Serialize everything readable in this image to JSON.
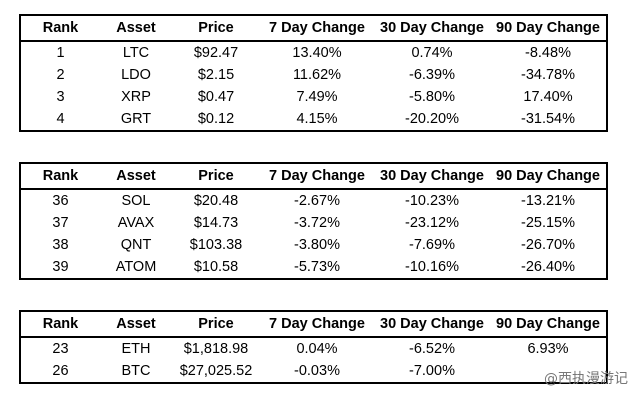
{
  "columns": [
    "Rank",
    "Asset",
    "Price",
    "7 Day Change",
    "30 Day Change",
    "90 Day Change"
  ],
  "tables": [
    {
      "rows": [
        [
          "1",
          "LTC",
          "$92.47",
          "13.40%",
          "0.74%",
          "-8.48%"
        ],
        [
          "2",
          "LDO",
          "$2.15",
          "11.62%",
          "-6.39%",
          "-34.78%"
        ],
        [
          "3",
          "XRP",
          "$0.47",
          "7.49%",
          "-5.80%",
          "17.40%"
        ],
        [
          "4",
          "GRT",
          "$0.12",
          "4.15%",
          "-20.20%",
          "-31.54%"
        ]
      ]
    },
    {
      "rows": [
        [
          "36",
          "SOL",
          "$20.48",
          "-2.67%",
          "-10.23%",
          "-13.21%"
        ],
        [
          "37",
          "AVAX",
          "$14.73",
          "-3.72%",
          "-23.12%",
          "-25.15%"
        ],
        [
          "38",
          "QNT",
          "$103.38",
          "-3.80%",
          "-7.69%",
          "-26.70%"
        ],
        [
          "39",
          "ATOM",
          "$10.58",
          "-5.73%",
          "-10.16%",
          "-26.40%"
        ]
      ]
    },
    {
      "rows": [
        [
          "23",
          "ETH",
          "$1,818.98",
          "0.04%",
          "-6.52%",
          "6.93%"
        ],
        [
          "26",
          "BTC",
          "$27,025.52",
          "-0.03%",
          "-7.00%",
          ""
        ]
      ]
    }
  ],
  "watermark": "@西执漫游记"
}
